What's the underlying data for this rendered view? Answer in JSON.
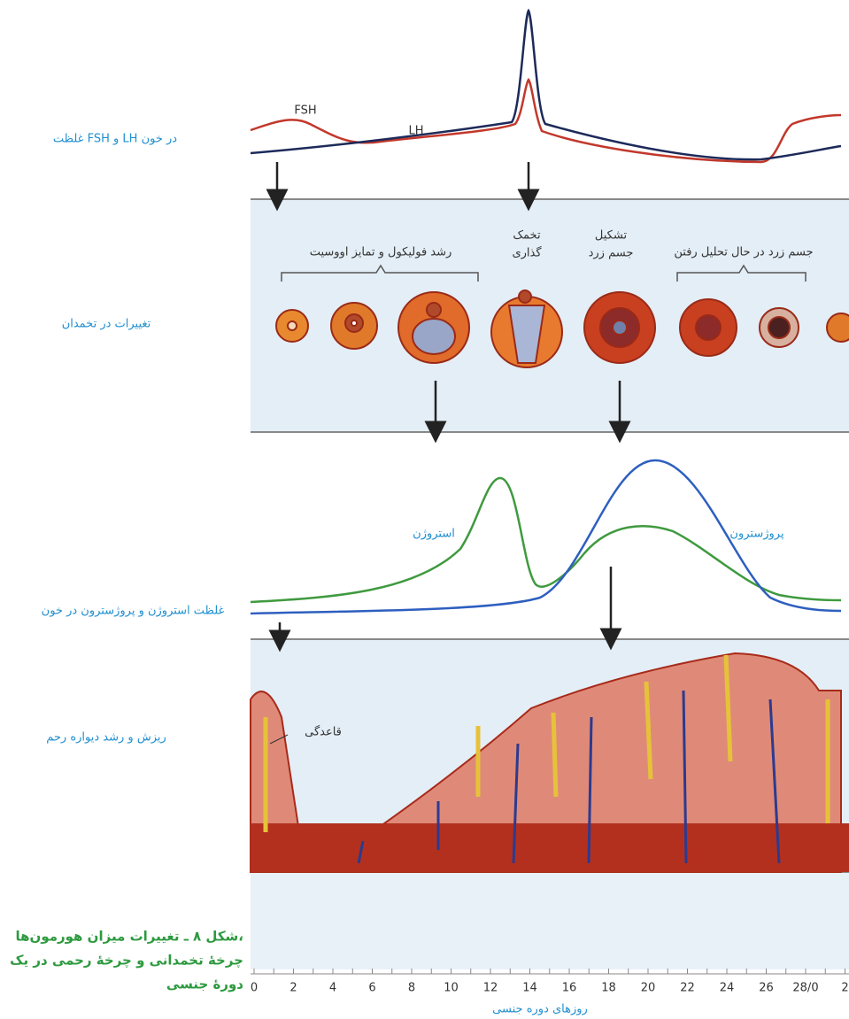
{
  "hormone_panel": {
    "label": "غلظت FSH و LH در خون",
    "fsh": "FSH",
    "lh": "LH"
  },
  "ovary_panel": {
    "label": "تغییرات در تخمدان",
    "stages": [
      {
        "lines": [
          "رشد فولیکول و تمایز اووسیت"
        ]
      },
      {
        "lines": [
          "تخمک",
          "گذاری"
        ]
      },
      {
        "lines": [
          "تشکیل",
          "جسم زرد"
        ]
      },
      {
        "lines": [
          "جسم زرد در حال تحلیل رفتن"
        ]
      }
    ]
  },
  "steroid_panel": {
    "label": "غلظت استروژن و پروژسترون در خون",
    "estrogen": "استروژن",
    "progesterone": "پروژسترون"
  },
  "uterus_panel": {
    "label": "ریزش و رشد دیواره رحم",
    "menstruation": "قاعدگی"
  },
  "day_axis": {
    "ticks": [
      0,
      2,
      4,
      6,
      8,
      10,
      12,
      14,
      16,
      18,
      20,
      22,
      24,
      26,
      "28/0",
      2
    ],
    "label": "روزهای دوره جنسی"
  },
  "caption": {
    "lines": [
      "شکل ۸ ـ تغییرات میزان هورمون‌ها،",
      "چرخهٔ تخمدانی و چرخهٔ رحمی در یک",
      "دورهٔ جنسی"
    ]
  }
}
